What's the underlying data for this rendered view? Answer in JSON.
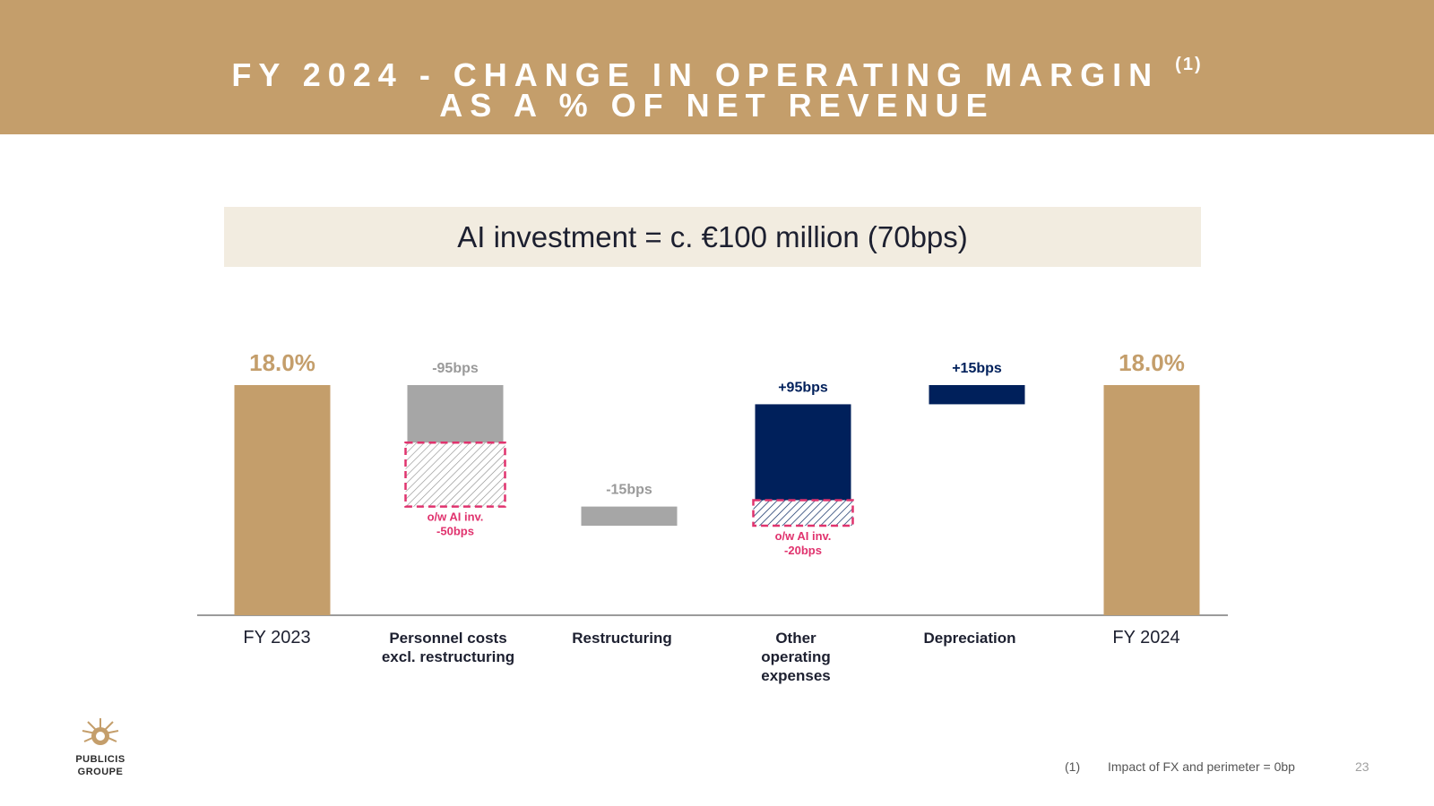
{
  "header": {
    "title_line1": "FY 2024 - CHANGE IN OPERATING MARGIN",
    "title_sup": "(1)",
    "title_line2": "AS A % OF NET REVENUE"
  },
  "banner": {
    "text": "AI investment = c. €100 million (70bps)"
  },
  "colors": {
    "gold": "#c49e6b",
    "navy": "#00205b",
    "grey": "#a6a6a6",
    "pink": "#e0336e",
    "header_bg": "#c49e6b",
    "banner_bg": "#f2ece0"
  },
  "chart_data": {
    "type": "bar",
    "subtype": "waterfall",
    "unit": "% of net revenue",
    "categories": [
      "FY 2023",
      "Personnel costs excl. restructuring",
      "Restructuring",
      "Other operating expenses",
      "Depreciation",
      "FY 2024"
    ],
    "category_lines": [
      [
        "FY 2023"
      ],
      [
        "Personnel costs",
        "excl. restructuring"
      ],
      [
        "Restructuring"
      ],
      [
        "Other",
        "operating",
        "expenses"
      ],
      [
        "Depreciation"
      ],
      [
        "FY 2024"
      ]
    ],
    "bars": [
      {
        "category": "FY 2023",
        "kind": "total",
        "value": 18.0,
        "label": "18.0%",
        "color": "#c49e6b"
      },
      {
        "category": "Personnel costs excl. restructuring",
        "kind": "delta",
        "value_bps": -95,
        "label": "-95bps",
        "color": "#a6a6a6",
        "sub_item": {
          "value_bps": -50,
          "label_lines": [
            "o/w AI inv.",
            "-50bps"
          ]
        }
      },
      {
        "category": "Restructuring",
        "kind": "delta",
        "value_bps": -15,
        "label": "-15bps",
        "color": "#a6a6a6"
      },
      {
        "category": "Other operating expenses",
        "kind": "delta",
        "value_bps": 95,
        "label": "+95bps",
        "color": "#00205b",
        "sub_item": {
          "value_bps": -20,
          "label_lines": [
            "o/w AI inv.",
            "-20bps"
          ]
        }
      },
      {
        "category": "Depreciation",
        "kind": "delta",
        "value_bps": 15,
        "label": "+15bps",
        "color": "#00205b"
      },
      {
        "category": "FY 2024",
        "kind": "total",
        "value": 18.0,
        "label": "18.0%",
        "color": "#c49e6b"
      }
    ],
    "axis_min": 16.2
  },
  "logo": {
    "line1": "PUBLICIS",
    "line2": "GROUPE"
  },
  "footnote": {
    "marker": "(1)",
    "text": "Impact of FX and perimeter = 0bp"
  },
  "page_number": "23"
}
